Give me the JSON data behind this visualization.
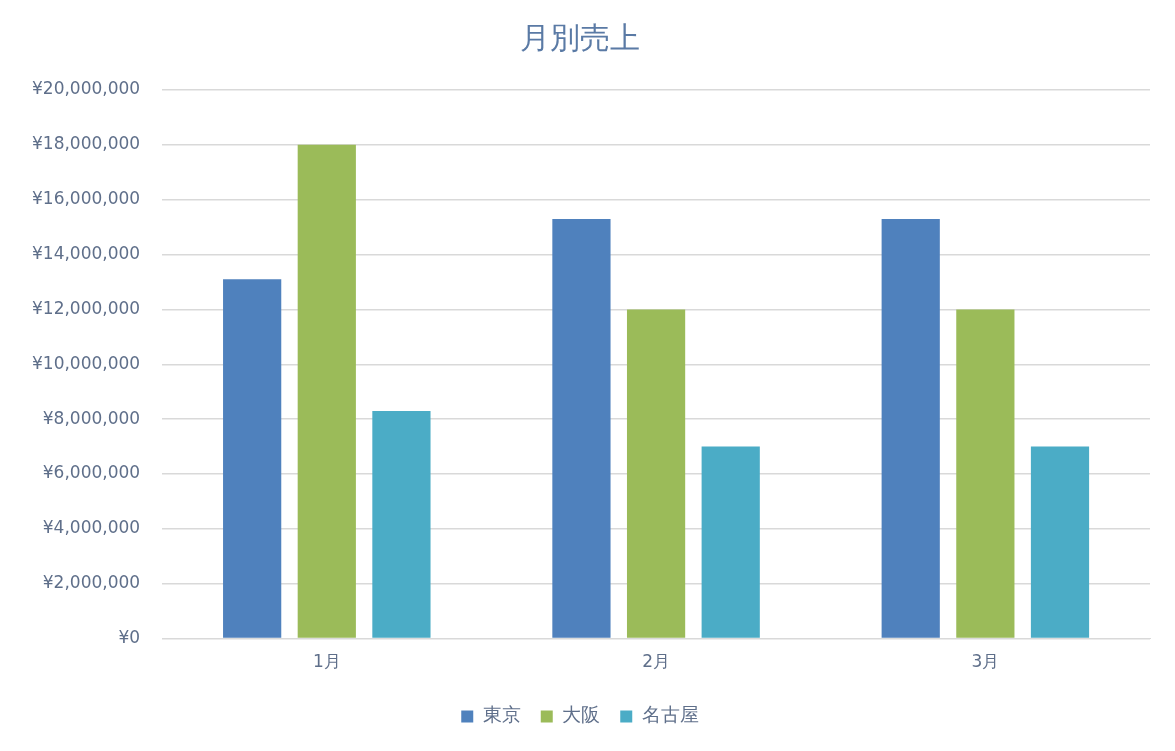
{
  "chart_data": {
    "type": "bar",
    "title": "月別売上",
    "categories": [
      "1月",
      "2月",
      "3月"
    ],
    "series": [
      {
        "name": "東京",
        "color": "#4f81bd",
        "values": [
          13100000,
          15300000,
          15300000
        ]
      },
      {
        "name": "大阪",
        "color": "#9bbb59",
        "values": [
          18000000,
          12000000,
          12000000
        ]
      },
      {
        "name": "名古屋",
        "color": "#4bacc6",
        "values": [
          8300000,
          7000000,
          7000000
        ]
      }
    ],
    "ylim": [
      0,
      20000000
    ],
    "yticks": [
      {
        "value": 0,
        "label": "¥0"
      },
      {
        "value": 2000000,
        "label": "¥2,000,000"
      },
      {
        "value": 4000000,
        "label": "¥4,000,000"
      },
      {
        "value": 6000000,
        "label": "¥6,000,000"
      },
      {
        "value": 8000000,
        "label": "¥8,000,000"
      },
      {
        "value": 10000000,
        "label": "¥10,000,000"
      },
      {
        "value": 12000000,
        "label": "¥12,000,000"
      },
      {
        "value": 14000000,
        "label": "¥14,000,000"
      },
      {
        "value": 16000000,
        "label": "¥16,000,000"
      },
      {
        "value": 18000000,
        "label": "¥18,000,000"
      },
      {
        "value": 20000000,
        "label": "¥20,000,000"
      }
    ],
    "grid": "y",
    "legend": "bottom"
  }
}
